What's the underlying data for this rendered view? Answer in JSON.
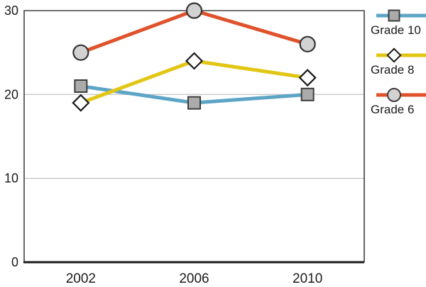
{
  "chart_data": {
    "type": "line",
    "title": "",
    "xlabel": "",
    "ylabel": "",
    "categories": [
      "2002",
      "2006",
      "2010"
    ],
    "series": [
      {
        "name": "Grade 10",
        "values": [
          21,
          19,
          20
        ],
        "color": "#5DA4C6",
        "marker": "square",
        "marker_fill": "#ABABAB",
        "marker_stroke": "#3d3d3d"
      },
      {
        "name": "Grade 8",
        "values": [
          19,
          24,
          22
        ],
        "color": "#E2C614",
        "marker": "diamond",
        "marker_fill": "#FFFFFF",
        "marker_stroke": "#1a1a1a"
      },
      {
        "name": "Grade 6",
        "values": [
          25,
          30,
          26
        ],
        "color": "#E0522B",
        "marker": "circle",
        "marker_fill": "#D2D2D2",
        "marker_stroke": "#333333"
      }
    ],
    "ylim": [
      0,
      30
    ],
    "yticks": [
      0,
      10,
      20,
      30
    ],
    "grid": "horizontal",
    "gridline_color": "#C9C9C9",
    "frame_color": "#404040",
    "axis_color": "#1A1A1A",
    "text_color": "#1a1a1a",
    "legend_position": "right"
  }
}
